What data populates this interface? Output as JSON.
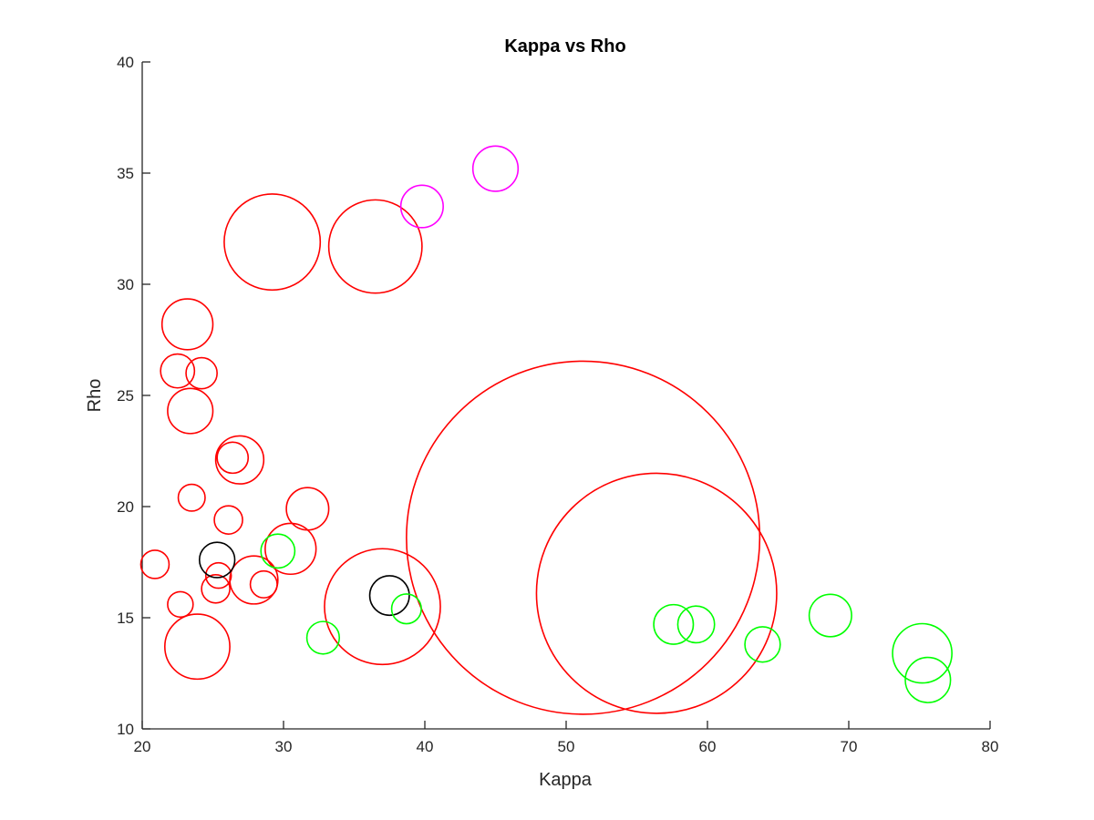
{
  "chart_data": {
    "type": "scatter",
    "title": "Kappa vs Rho",
    "xlabel": "Kappa",
    "ylabel": "Rho",
    "xlim": [
      20,
      80
    ],
    "ylim": [
      10,
      40
    ],
    "xticks": [
      20,
      30,
      40,
      50,
      60,
      70,
      80
    ],
    "yticks": [
      10,
      15,
      20,
      25,
      30,
      35,
      40
    ],
    "grid": false,
    "legend": "none",
    "marker": "open-circle-bubble",
    "colors": {
      "red": "#ff0000",
      "green": "#00ff00",
      "black": "#000000",
      "magenta": "#ff00ff"
    },
    "points": [
      {
        "x": 51.2,
        "y": 18.6,
        "size": 25.0,
        "color": "red"
      },
      {
        "x": 56.4,
        "y": 16.1,
        "size": 17.0,
        "color": "red"
      },
      {
        "x": 29.2,
        "y": 31.9,
        "size": 6.8,
        "color": "red"
      },
      {
        "x": 36.5,
        "y": 31.7,
        "size": 6.6,
        "color": "red"
      },
      {
        "x": 37.0,
        "y": 15.5,
        "size": 8.2,
        "color": "red"
      },
      {
        "x": 23.9,
        "y": 13.7,
        "size": 4.6,
        "color": "red"
      },
      {
        "x": 23.2,
        "y": 28.2,
        "size": 3.6,
        "color": "red"
      },
      {
        "x": 23.4,
        "y": 24.3,
        "size": 3.2,
        "color": "red"
      },
      {
        "x": 26.9,
        "y": 22.1,
        "size": 3.4,
        "color": "red"
      },
      {
        "x": 30.5,
        "y": 18.1,
        "size": 3.6,
        "color": "red"
      },
      {
        "x": 27.9,
        "y": 16.7,
        "size": 3.4,
        "color": "red"
      },
      {
        "x": 31.7,
        "y": 19.9,
        "size": 3.0,
        "color": "red"
      },
      {
        "x": 22.5,
        "y": 26.1,
        "size": 2.4,
        "color": "red"
      },
      {
        "x": 24.2,
        "y": 26.0,
        "size": 2.2,
        "color": "red"
      },
      {
        "x": 26.4,
        "y": 22.2,
        "size": 2.2,
        "color": "red"
      },
      {
        "x": 23.5,
        "y": 20.4,
        "size": 1.9,
        "color": "red"
      },
      {
        "x": 26.1,
        "y": 19.4,
        "size": 2.0,
        "color": "red"
      },
      {
        "x": 20.9,
        "y": 17.4,
        "size": 2.0,
        "color": "red"
      },
      {
        "x": 25.4,
        "y": 16.9,
        "size": 1.8,
        "color": "red"
      },
      {
        "x": 25.2,
        "y": 16.3,
        "size": 2.0,
        "color": "red"
      },
      {
        "x": 28.6,
        "y": 16.5,
        "size": 1.9,
        "color": "red"
      },
      {
        "x": 22.7,
        "y": 15.6,
        "size": 1.8,
        "color": "red"
      },
      {
        "x": 25.3,
        "y": 17.6,
        "size": 2.5,
        "color": "black"
      },
      {
        "x": 37.5,
        "y": 16.0,
        "size": 2.8,
        "color": "black"
      },
      {
        "x": 39.8,
        "y": 33.5,
        "size": 3.0,
        "color": "magenta"
      },
      {
        "x": 45.0,
        "y": 35.2,
        "size": 3.2,
        "color": "magenta"
      },
      {
        "x": 29.6,
        "y": 18.0,
        "size": 2.4,
        "color": "green"
      },
      {
        "x": 32.8,
        "y": 14.1,
        "size": 2.3,
        "color": "green"
      },
      {
        "x": 38.7,
        "y": 15.4,
        "size": 2.1,
        "color": "green"
      },
      {
        "x": 57.6,
        "y": 14.7,
        "size": 2.8,
        "color": "green"
      },
      {
        "x": 59.2,
        "y": 14.7,
        "size": 2.6,
        "color": "green"
      },
      {
        "x": 63.9,
        "y": 13.8,
        "size": 2.5,
        "color": "green"
      },
      {
        "x": 68.7,
        "y": 15.1,
        "size": 3.0,
        "color": "green"
      },
      {
        "x": 75.2,
        "y": 13.4,
        "size": 4.2,
        "color": "green"
      },
      {
        "x": 75.6,
        "y": 12.2,
        "size": 3.2,
        "color": "green"
      }
    ]
  }
}
